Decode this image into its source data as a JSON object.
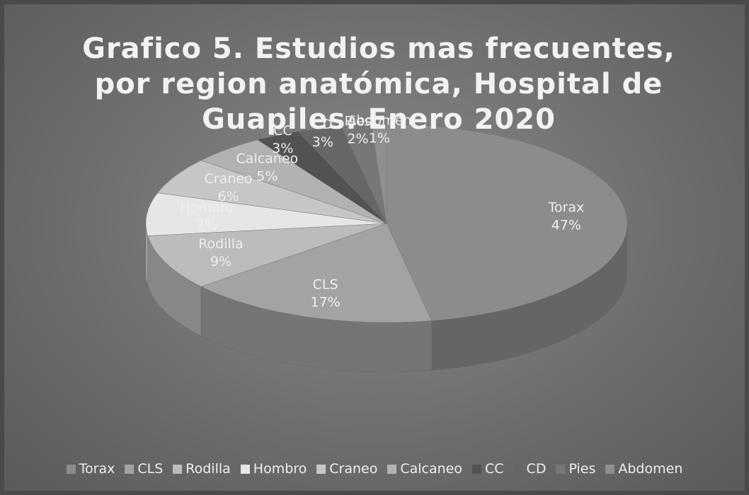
{
  "chart_data": {
    "type": "pie",
    "title": "Grafico 5. Estudios mas frecuentes, por region anatómica, Hospital de Guapiles. Enero 2020",
    "categories": [
      "Torax",
      "CLS",
      "Rodilla",
      "Hombro",
      "Craneo",
      "Calcaneo",
      "CC",
      "CD",
      "Pies",
      "Abdomen"
    ],
    "values": [
      47,
      17,
      9,
      7,
      6,
      5,
      3,
      3,
      2,
      1
    ],
    "value_labels": [
      "47%",
      "17%",
      "9%",
      "7%",
      "6%",
      "5%",
      "3%",
      "3%",
      "2%",
      "1%"
    ],
    "colors": [
      "#8c8c8c",
      "#a3a3a3",
      "#bcbcbc",
      "#e6e6e6",
      "#c6c6c6",
      "#b2b2b2",
      "#525252",
      "#666666",
      "#777777",
      "#8f8f8f"
    ],
    "legend": "bottom"
  }
}
